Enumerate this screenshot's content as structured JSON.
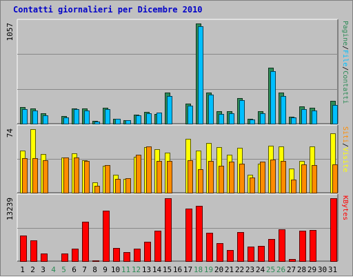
{
  "title": "Contatti giornalieri per Dicembre 2010",
  "colors": {
    "frame": "#c0c0c0",
    "grid": "#888888",
    "pages": "#2e8b57",
    "files": "#00bfff",
    "visits": "#ffff00",
    "sites": "#ff8c00",
    "kbytes": "#ff0000",
    "weekday_label": "#000000",
    "weekend_label": "#2e8b57"
  },
  "chart_data": [
    {
      "type": "bar",
      "name": "hits",
      "categories": [
        "1",
        "2",
        "3",
        "4",
        "5",
        "6",
        "7",
        "8",
        "9",
        "10",
        "11",
        "12",
        "13",
        "14",
        "15",
        "16",
        "17",
        "18",
        "19",
        "20",
        "21",
        "22",
        "23",
        "24",
        "25",
        "26",
        "27",
        "28",
        "29",
        "30",
        "31"
      ],
      "weekend_days": [
        "4",
        "5",
        "11",
        "12",
        "18",
        "19",
        "25",
        "26"
      ],
      "y_max_label": "1057",
      "ylim": [
        0,
        1057
      ],
      "series": [
        {
          "name": "Pagine",
          "values": [
            175,
            162,
            108,
            0,
            78,
            162,
            162,
            30,
            170,
            54,
            38,
            97,
            127,
            102,
            325,
            0,
            211,
            1057,
            325,
            130,
            130,
            270,
            54,
            130,
            594,
            330,
            76,
            184,
            170,
            0,
            244
          ]
        },
        {
          "name": "File",
          "values": [
            150,
            140,
            90,
            0,
            65,
            150,
            135,
            25,
            150,
            50,
            35,
            85,
            110,
            115,
            290,
            0,
            190,
            1025,
            305,
            105,
            110,
            245,
            45,
            110,
            555,
            290,
            65,
            155,
            140,
            0,
            200
          ]
        }
      ],
      "legend": [
        "Pagine",
        "File",
        "Contatti"
      ],
      "legend_position": "right"
    },
    {
      "type": "bar",
      "name": "visits",
      "categories": [
        "1",
        "2",
        "3",
        "4",
        "5",
        "6",
        "7",
        "8",
        "9",
        "10",
        "11",
        "12",
        "13",
        "14",
        "15",
        "16",
        "17",
        "18",
        "19",
        "20",
        "21",
        "22",
        "23",
        "24",
        "25",
        "26",
        "27",
        "28",
        "29",
        "30",
        "31"
      ],
      "y_max_label": "74",
      "ylim": [
        0,
        74
      ],
      "series": [
        {
          "name": "Visite",
          "values": [
            49,
            74,
            45,
            0,
            41,
            46,
            38,
            12,
            31,
            21,
            16,
            42,
            53,
            51,
            47,
            0,
            63,
            49,
            58,
            53,
            44,
            52,
            21,
            34,
            55,
            54,
            28,
            37,
            54,
            0,
            69
          ]
        },
        {
          "name": "Siti",
          "values": [
            40,
            40,
            38,
            0,
            41,
            41,
            37,
            8,
            32,
            16,
            17,
            44,
            54,
            37,
            37,
            0,
            38,
            27,
            37,
            31,
            36,
            34,
            18,
            36,
            39,
            37,
            15,
            33,
            32,
            0,
            33
          ]
        }
      ],
      "legend": [
        "Siti",
        "Visite"
      ],
      "legend_position": "right"
    },
    {
      "type": "bar",
      "name": "kbytes",
      "categories": [
        "1",
        "2",
        "3",
        "4",
        "5",
        "6",
        "7",
        "8",
        "9",
        "10",
        "11",
        "12",
        "13",
        "14",
        "15",
        "16",
        "17",
        "18",
        "19",
        "20",
        "21",
        "22",
        "23",
        "24",
        "25",
        "26",
        "27",
        "28",
        "29",
        "30",
        "31"
      ],
      "y_max_label": "13239",
      "ylim": [
        0,
        13239
      ],
      "series": [
        {
          "name": "KBytes",
          "values": [
            5400,
            4400,
            1570,
            0,
            1570,
            2590,
            8350,
            190,
            10600,
            2720,
            1910,
            2650,
            4050,
            6340,
            13239,
            0,
            11100,
            11600,
            5960,
            3850,
            2350,
            6040,
            2990,
            3260,
            4640,
            6660,
            380,
            6360,
            6480,
            0,
            13239
          ]
        }
      ],
      "legend": [
        "KBytes"
      ],
      "legend_position": "right"
    }
  ]
}
